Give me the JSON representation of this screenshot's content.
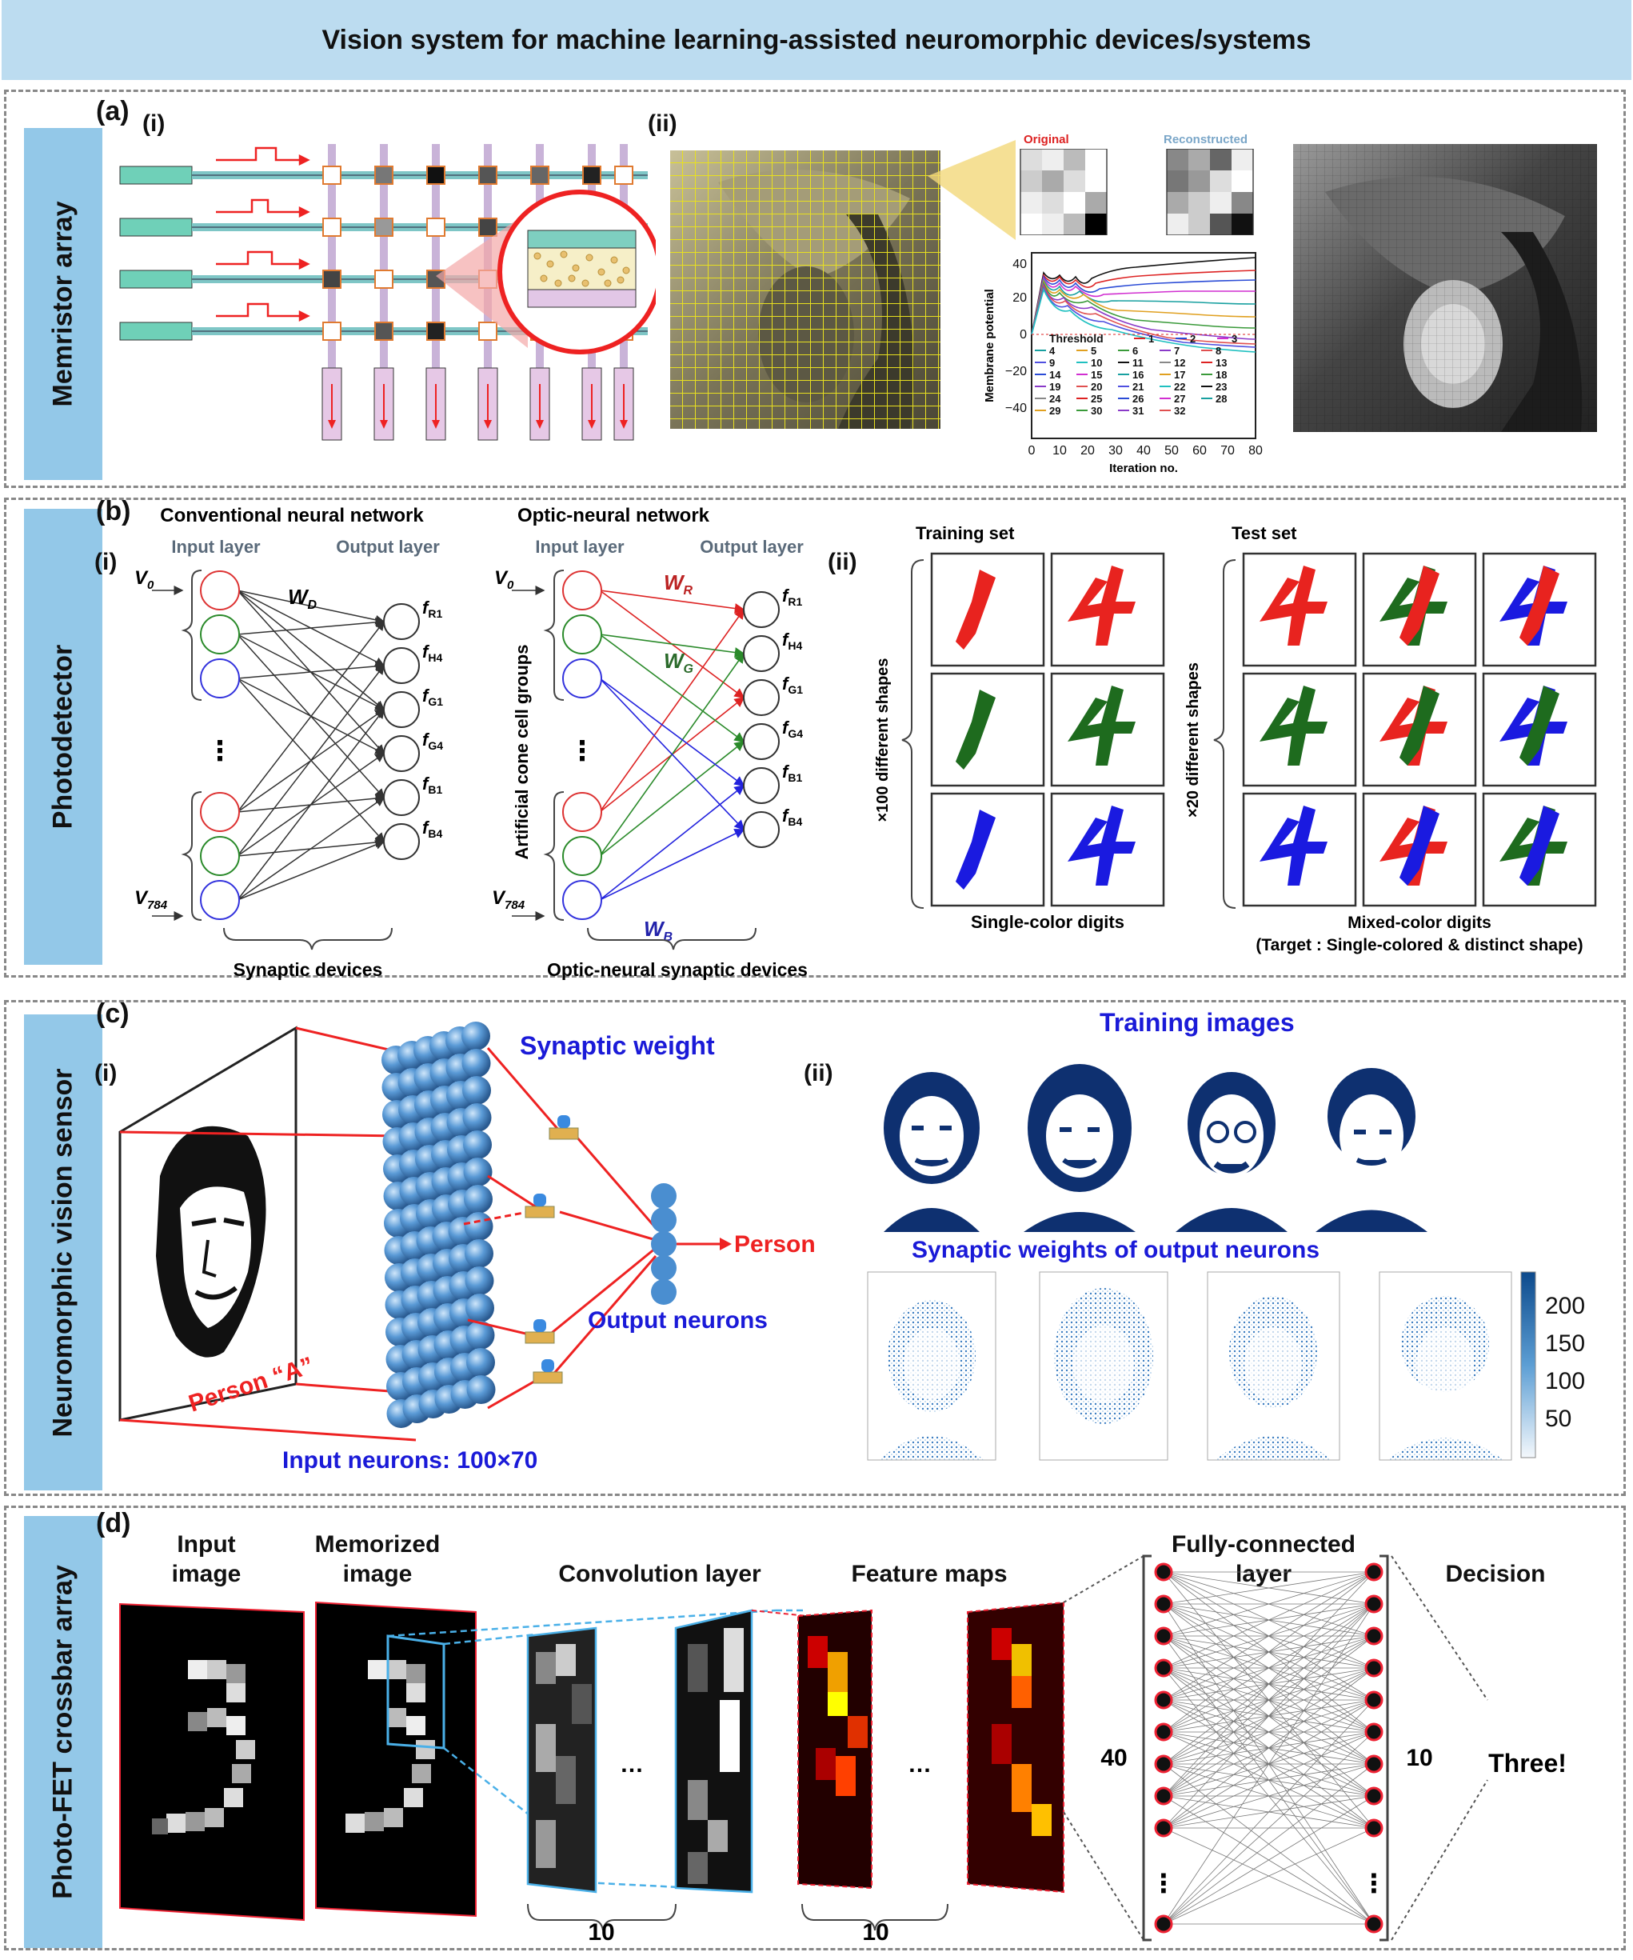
{
  "title": "Vision system for machine learning-assisted neuromorphic devices/systems",
  "panels": {
    "a": {
      "letter": "(a)",
      "sidebar": "Memristor array",
      "sub_i": "(i)",
      "sub_ii": "(ii)",
      "original_label": "Original",
      "reconstructed_label": "Reconstructed",
      "chart": {
        "ylabel": "Membrane potential",
        "xlabel": "Iteration no.",
        "yticks": [
          "40",
          "20",
          "0",
          "−20",
          "−40"
        ],
        "xticks": [
          "0",
          "10",
          "20",
          "30",
          "40",
          "50",
          "60",
          "70",
          "80"
        ],
        "legend_title": "Threshold",
        "legend_entries": [
          "1",
          "2",
          "3",
          "4",
          "5",
          "6",
          "7",
          "8",
          "9",
          "10",
          "11",
          "12",
          "13",
          "14",
          "15",
          "16",
          "17",
          "18",
          "19",
          "20",
          "21",
          "22",
          "23",
          "24",
          "25",
          "26",
          "27",
          "28",
          "29",
          "30",
          "31",
          "32"
        ]
      }
    },
    "b": {
      "letter": "(b)",
      "sidebar": "Photodetector",
      "sub_i": "(i)",
      "sub_ii": "(ii)",
      "conv_title": "Conventional neural network",
      "optic_title": "Optic-neural network",
      "input_layer": "Input layer",
      "output_layer": "Output layer",
      "v0": "V",
      "v0_sub": "0",
      "v784": "V",
      "v784_sub": "784",
      "w_d": "W",
      "w_d_sub": "D",
      "w_r": "W",
      "w_r_sub": "R",
      "w_g": "W",
      "w_g_sub": "G",
      "w_b": "W",
      "w_b_sub": "B",
      "outputs": [
        {
          "f": "f",
          "s": "R1"
        },
        {
          "f": "f",
          "s": "H4"
        },
        {
          "f": "f",
          "s": "G1"
        },
        {
          "f": "f",
          "s": "G4"
        },
        {
          "f": "f",
          "s": "B1"
        },
        {
          "f": "f",
          "s": "B4"
        }
      ],
      "dots": "⋮",
      "cone_label": "Artificial cone cell groups",
      "synaptic_devices": "Synaptic devices",
      "optic_synaptic_devices": "Optic-neural synaptic devices",
      "training_set": "Training set",
      "test_set": "Test set",
      "x100": "×100 different shapes",
      "x20": "×20 different shapes",
      "single_color": "Single-color digits",
      "mixed_color": "Mixed-color digits",
      "target": "(Target : Single-colored & distinct shape)",
      "colors": {
        "red": "#e8231f",
        "green": "#1e6b1e",
        "blue": "#1a1ae0"
      }
    },
    "c": {
      "letter": "(c)",
      "sidebar": "Neuromorphic vision sensor",
      "sub_i": "(i)",
      "sub_ii": "(ii)",
      "synaptic_weight": "Synaptic weight",
      "person_a": "Person “A”",
      "output_neurons": "Output neurons",
      "input_neurons": "Input neurons: 100×70",
      "training_images": "Training images",
      "synaptic_weights_output": "Synaptic weights of output neurons",
      "colorbar_ticks": [
        "200",
        "150",
        "100",
        "50"
      ]
    },
    "d": {
      "letter": "(d)",
      "sidebar": "Photo-FET crossbar array",
      "input_image": [
        "Input",
        "image"
      ],
      "memorized_image": [
        "Memorized",
        "image"
      ],
      "convolution_layer": "Convolution layer",
      "feature_maps": "Feature maps",
      "fully_connected": [
        "Fully-connected",
        "layer"
      ],
      "decision": "Decision",
      "ellipsis": "…",
      "count_conv": "10",
      "count_feat": "10",
      "fc_in": "40",
      "fc_out": "10",
      "dots": "⋮",
      "result": "Three!"
    }
  }
}
